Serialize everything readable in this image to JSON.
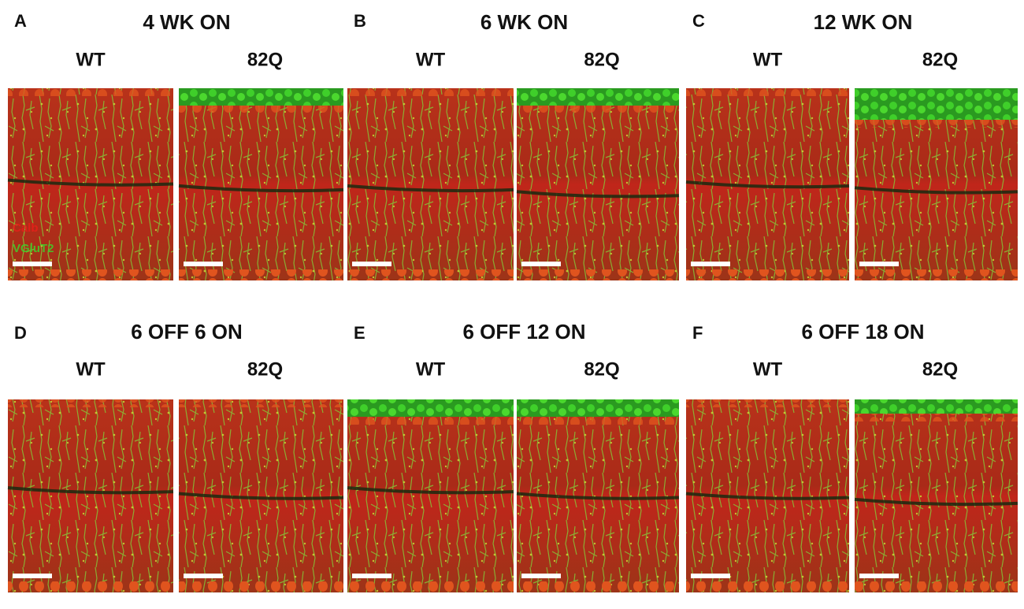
{
  "panels": [
    {
      "letter": "A",
      "title": "4 WK ON",
      "columns": [
        "WT",
        "82Q"
      ]
    },
    {
      "letter": "B",
      "title": "6 WK ON",
      "columns": [
        "WT",
        "82Q"
      ]
    },
    {
      "letter": "C",
      "title": "12 WK ON",
      "columns": [
        "WT",
        "82Q"
      ]
    },
    {
      "letter": "D",
      "title": "6 OFF 6 ON",
      "columns": [
        "WT",
        "82Q"
      ]
    },
    {
      "letter": "E",
      "title": "6 OFF 12 ON",
      "columns": [
        "WT",
        "82Q"
      ]
    },
    {
      "letter": "F",
      "title": "6 OFF 18 ON",
      "columns": [
        "WT",
        "82Q"
      ]
    }
  ],
  "stain_labels": [
    "Calb",
    "VGluT2"
  ]
}
